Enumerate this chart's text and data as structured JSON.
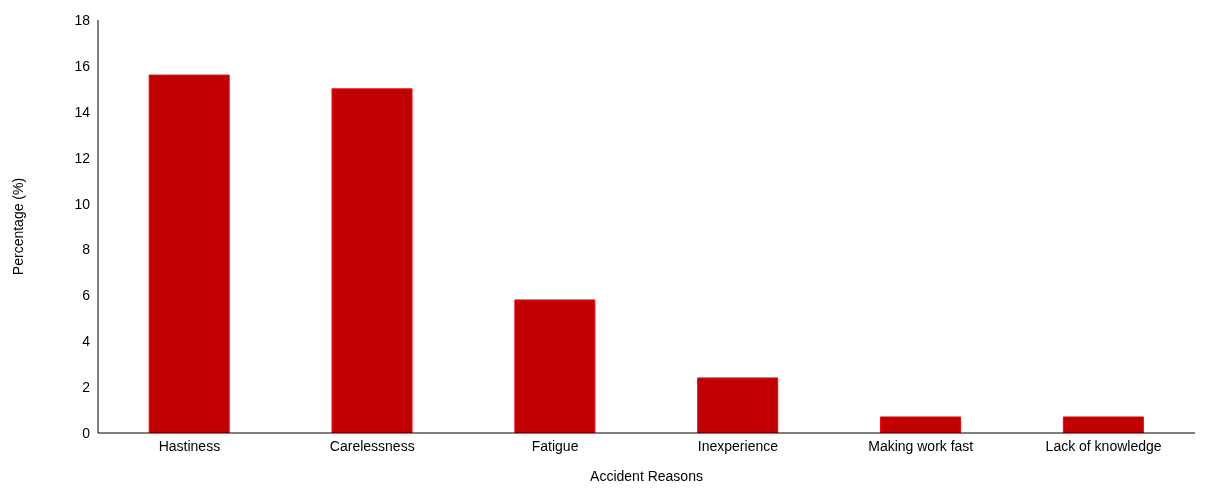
{
  "chart_data": {
    "type": "bar",
    "xlabel": "Accident Reasons",
    "ylabel": "Percentage (%)",
    "categories": [
      "Hastiness",
      "Carelessness",
      "Fatigue",
      "Inexperience",
      "Making work fast",
      "Lack of knowledge"
    ],
    "values": [
      15.6,
      15.0,
      5.8,
      2.4,
      0.7,
      0.7
    ],
    "color": "#c00000",
    "ylim": [
      0,
      18
    ],
    "yticks": [
      0,
      2,
      4,
      6,
      8,
      10,
      12,
      14,
      16,
      18
    ],
    "grid": false,
    "legend": false
  }
}
